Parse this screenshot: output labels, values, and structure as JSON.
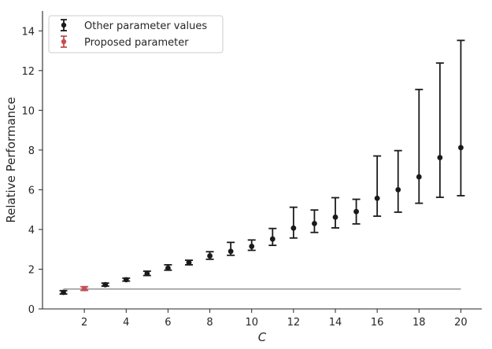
{
  "chart_data": {
    "type": "scatter",
    "title": "",
    "xlabel": "C",
    "ylabel": "Relative Performance",
    "xlim": [
      0,
      21
    ],
    "ylim": [
      0,
      15
    ],
    "xticks": [
      2,
      4,
      6,
      8,
      10,
      12,
      14,
      16,
      18,
      20
    ],
    "yticks": [
      0,
      2,
      4,
      6,
      8,
      10,
      12,
      14
    ],
    "grid": false,
    "legend_position": "top-left",
    "reference_line": {
      "y": 1.0,
      "x_start": 1,
      "x_end": 20,
      "color": "#999999"
    },
    "series": [
      {
        "name": "Other parameter values",
        "color": "#1a1a1a",
        "points": [
          {
            "x": 1,
            "y": 0.83,
            "lo": 0.75,
            "hi": 0.92
          },
          {
            "x": 3,
            "y": 1.22,
            "lo": 1.15,
            "hi": 1.3
          },
          {
            "x": 4,
            "y": 1.47,
            "lo": 1.4,
            "hi": 1.55
          },
          {
            "x": 5,
            "y": 1.78,
            "lo": 1.68,
            "hi": 1.9
          },
          {
            "x": 6,
            "y": 2.05,
            "lo": 1.95,
            "hi": 2.22
          },
          {
            "x": 7,
            "y": 2.33,
            "lo": 2.22,
            "hi": 2.45
          },
          {
            "x": 8,
            "y": 2.67,
            "lo": 2.5,
            "hi": 2.88
          },
          {
            "x": 9,
            "y": 2.9,
            "lo": 2.7,
            "hi": 3.35
          },
          {
            "x": 10,
            "y": 3.15,
            "lo": 2.95,
            "hi": 3.47
          },
          {
            "x": 11,
            "y": 3.52,
            "lo": 3.2,
            "hi": 4.05
          },
          {
            "x": 12,
            "y": 4.07,
            "lo": 3.57,
            "hi": 5.12
          },
          {
            "x": 13,
            "y": 4.3,
            "lo": 3.85,
            "hi": 4.98
          },
          {
            "x": 14,
            "y": 4.62,
            "lo": 4.08,
            "hi": 5.6
          },
          {
            "x": 15,
            "y": 4.9,
            "lo": 4.28,
            "hi": 5.52
          },
          {
            "x": 16,
            "y": 5.57,
            "lo": 4.67,
            "hi": 7.7
          },
          {
            "x": 17,
            "y": 6.0,
            "lo": 4.87,
            "hi": 7.97
          },
          {
            "x": 18,
            "y": 6.65,
            "lo": 5.32,
            "hi": 11.05
          },
          {
            "x": 19,
            "y": 7.62,
            "lo": 5.62,
            "hi": 12.38
          },
          {
            "x": 20,
            "y": 8.12,
            "lo": 5.7,
            "hi": 13.52
          }
        ]
      },
      {
        "name": "Proposed parameter",
        "color": "#c44e52",
        "points": [
          {
            "x": 2,
            "y": 1.02,
            "lo": 0.93,
            "hi": 1.12
          }
        ]
      }
    ]
  }
}
